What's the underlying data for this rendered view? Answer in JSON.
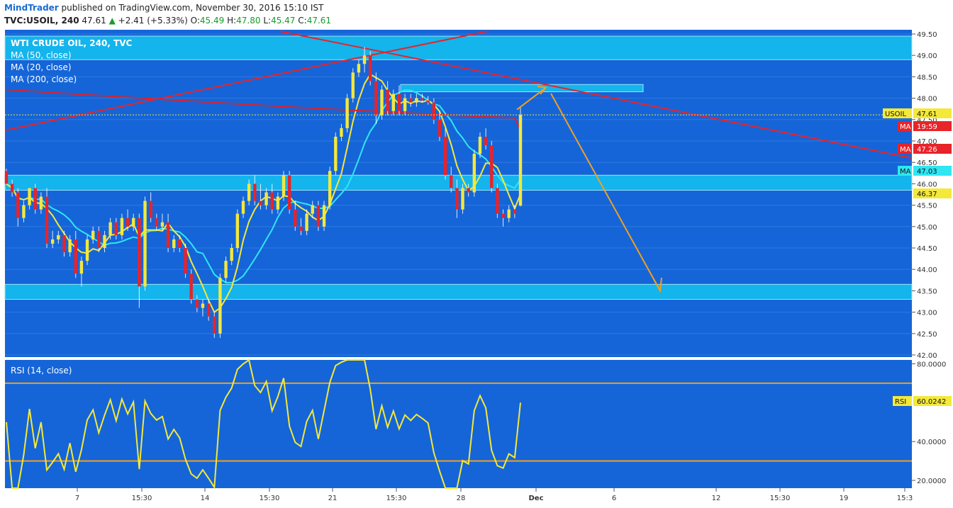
{
  "header": {
    "author": "MindTrader",
    "published_text": "published on TradingView.com, November 30, 2016 15:10 IST",
    "symbol": "TVC:USOIL, 240",
    "last": "47.61",
    "change_arrow": "▲",
    "change": "+2.41 (+5.33%)",
    "o_label": "O:",
    "o_value": "45.49",
    "h_label": "H:",
    "h_value": "47.80",
    "l_label": "L:",
    "l_value": "45.47",
    "c_label": "C:",
    "c_value": "47.61"
  },
  "legend": {
    "title": "WTI CRUDE OIL, 240, TVC",
    "ma50": "MA (50, close)",
    "ma20": "MA (20, close)",
    "ma200": "MA (200, close)"
  },
  "rsi_label": "RSI (14, close)",
  "price_axis": {
    "ticks": [
      "49.50",
      "49.00",
      "48.50",
      "48.00",
      "47.50",
      "47.00",
      "46.50",
      "46.00",
      "45.50",
      "45.00",
      "44.50",
      "44.00",
      "43.50",
      "43.00",
      "42.50",
      "42.00"
    ]
  },
  "rsi_axis": {
    "ticks": [
      "80.0000",
      "40.0000",
      "20.0000"
    ]
  },
  "time_axis": {
    "ticks": [
      "7",
      "15:30",
      "14",
      "15:30",
      "21",
      "15:30",
      "28",
      "Dec",
      "6",
      "12",
      "15:30",
      "19",
      "15:3"
    ]
  },
  "badges": [
    {
      "label": "USOIL",
      "value": "47.61",
      "color": "#f4e83a"
    },
    {
      "label": "MA",
      "value": "19:59",
      "color": "#e8232a"
    },
    {
      "label": "MA",
      "value": "47.26",
      "color": "#e8232a"
    },
    {
      "label": "MA",
      "value": "47.03",
      "color": "#f4e83a"
    },
    {
      "label": "",
      "value": "46.37",
      "color": "#f4e83a"
    },
    {
      "label": "RSI",
      "value": "60.0242",
      "color": "#f4e83a"
    }
  ],
  "colors": {
    "background": "#1565d8",
    "zone": "#14b4ec",
    "bull": "#f4e83a",
    "bear": "#e8232a",
    "ma50": "#2fe6f2",
    "ma20": "#f4e83a",
    "ma200": "#d9232f",
    "trendline": "#e8232a",
    "projection": "#f0a020",
    "rsi_line": "#f4e83a",
    "rsi_levels": "#f0a020"
  },
  "chart_data": {
    "type": "candlestick",
    "symbol": "TVC:USOIL",
    "timeframe": "240",
    "ylim": [
      41.9,
      49.6
    ],
    "support_resistance_zones": [
      [
        48.9,
        49.45
      ],
      [
        45.85,
        46.2
      ],
      [
        43.3,
        43.65
      ],
      [
        48.15,
        48.32
      ]
    ],
    "last_price": 47.61,
    "ma_values": {
      "ma200": 47.26,
      "ma50": 47.03,
      "ma20": 46.37
    },
    "candles_ohlc": [
      [
        46.3,
        46.35,
        46.0,
        46.0
      ],
      [
        46.0,
        46.1,
        45.7,
        45.8
      ],
      [
        45.8,
        45.9,
        45.0,
        45.2
      ],
      [
        45.2,
        45.6,
        45.1,
        45.5
      ],
      [
        45.5,
        45.9,
        45.4,
        45.9
      ],
      [
        45.9,
        46.0,
        45.3,
        45.4
      ],
      [
        45.4,
        45.8,
        45.3,
        45.7
      ],
      [
        45.7,
        45.9,
        44.5,
        44.6
      ],
      [
        44.6,
        44.9,
        44.5,
        44.7
      ],
      [
        44.7,
        44.9,
        44.6,
        44.8
      ],
      [
        44.8,
        44.9,
        44.3,
        44.4
      ],
      [
        44.4,
        44.8,
        44.3,
        44.7
      ],
      [
        44.7,
        44.9,
        43.8,
        43.9
      ],
      [
        43.9,
        44.3,
        43.6,
        44.2
      ],
      [
        44.2,
        44.8,
        44.1,
        44.7
      ],
      [
        44.7,
        45.0,
        44.6,
        44.9
      ],
      [
        44.9,
        45.0,
        44.4,
        44.5
      ],
      [
        44.5,
        44.9,
        44.4,
        44.8
      ],
      [
        44.8,
        45.2,
        44.7,
        45.1
      ],
      [
        45.1,
        45.2,
        44.7,
        44.8
      ],
      [
        44.8,
        45.3,
        44.7,
        45.2
      ],
      [
        45.2,
        45.4,
        44.9,
        45.0
      ],
      [
        45.0,
        45.3,
        44.9,
        45.2
      ],
      [
        45.2,
        45.3,
        43.1,
        43.6
      ],
      [
        43.6,
        45.7,
        43.5,
        45.6
      ],
      [
        45.6,
        45.8,
        45.1,
        45.2
      ],
      [
        45.2,
        45.3,
        44.9,
        45.0
      ],
      [
        45.0,
        45.3,
        44.9,
        45.1
      ],
      [
        45.1,
        45.3,
        44.4,
        44.5
      ],
      [
        44.5,
        44.8,
        44.4,
        44.7
      ],
      [
        44.7,
        44.8,
        44.4,
        44.5
      ],
      [
        44.5,
        44.6,
        43.8,
        43.9
      ],
      [
        43.9,
        44.0,
        43.2,
        43.3
      ],
      [
        43.3,
        43.4,
        43.0,
        43.1
      ],
      [
        43.1,
        43.3,
        42.9,
        43.2
      ],
      [
        43.2,
        43.3,
        42.8,
        42.9
      ],
      [
        42.9,
        43.0,
        42.4,
        42.5
      ],
      [
        42.5,
        43.9,
        42.4,
        43.8
      ],
      [
        43.8,
        44.3,
        43.7,
        44.2
      ],
      [
        44.2,
        44.6,
        44.1,
        44.5
      ],
      [
        44.5,
        45.4,
        44.4,
        45.3
      ],
      [
        45.3,
        45.7,
        45.2,
        45.6
      ],
      [
        45.6,
        46.1,
        45.5,
        46.0
      ],
      [
        46.0,
        46.2,
        45.5,
        45.6
      ],
      [
        45.6,
        46.0,
        45.4,
        45.5
      ],
      [
        45.5,
        45.9,
        45.4,
        45.8
      ],
      [
        45.8,
        46.0,
        45.3,
        45.4
      ],
      [
        45.4,
        45.8,
        45.3,
        45.7
      ],
      [
        45.7,
        46.3,
        45.6,
        46.2
      ],
      [
        46.2,
        46.3,
        45.3,
        45.4
      ],
      [
        45.4,
        45.6,
        44.9,
        45.0
      ],
      [
        45.0,
        45.2,
        44.8,
        44.9
      ],
      [
        44.9,
        45.4,
        44.8,
        45.3
      ],
      [
        45.3,
        45.6,
        45.2,
        45.5
      ],
      [
        45.5,
        45.6,
        44.9,
        45.0
      ],
      [
        45.0,
        45.6,
        44.9,
        45.5
      ],
      [
        45.5,
        46.4,
        45.4,
        46.3
      ],
      [
        46.3,
        47.2,
        46.2,
        47.1
      ],
      [
        47.1,
        47.4,
        47.0,
        47.3
      ],
      [
        47.3,
        48.1,
        47.2,
        48.0
      ],
      [
        48.0,
        48.7,
        47.9,
        48.6
      ],
      [
        48.6,
        48.9,
        48.5,
        48.8
      ],
      [
        48.8,
        49.2,
        48.6,
        49.0
      ],
      [
        49.0,
        49.1,
        48.3,
        48.4
      ],
      [
        48.4,
        48.6,
        47.4,
        47.6
      ],
      [
        47.6,
        48.3,
        47.5,
        48.2
      ],
      [
        48.2,
        48.4,
        47.6,
        47.7
      ],
      [
        47.7,
        48.2,
        47.6,
        48.1
      ],
      [
        48.1,
        48.3,
        47.6,
        47.7
      ],
      [
        47.7,
        48.1,
        47.6,
        48.0
      ],
      [
        48.0,
        48.1,
        47.8,
        47.9
      ],
      [
        47.9,
        48.1,
        47.8,
        48.0
      ],
      [
        48.0,
        48.1,
        47.9,
        47.95
      ],
      [
        47.95,
        48.05,
        47.85,
        47.9
      ],
      [
        47.9,
        48.0,
        47.4,
        47.5
      ],
      [
        47.5,
        47.7,
        47.0,
        47.1
      ],
      [
        47.1,
        47.3,
        46.1,
        46.2
      ],
      [
        46.2,
        46.4,
        45.8,
        45.9
      ],
      [
        45.9,
        46.1,
        45.2,
        45.4
      ],
      [
        45.4,
        46.0,
        45.3,
        45.9
      ],
      [
        45.9,
        46.0,
        45.7,
        45.8
      ],
      [
        45.8,
        46.8,
        45.7,
        46.7
      ],
      [
        46.7,
        47.2,
        46.6,
        47.1
      ],
      [
        47.1,
        47.3,
        46.8,
        46.9
      ],
      [
        46.9,
        47.0,
        45.8,
        45.9
      ],
      [
        45.9,
        46.0,
        45.2,
        45.3
      ],
      [
        45.3,
        45.4,
        45.0,
        45.2
      ],
      [
        45.2,
        45.5,
        45.1,
        45.4
      ],
      [
        45.4,
        45.5,
        45.2,
        45.3
      ],
      [
        45.49,
        47.8,
        45.47,
        47.61
      ]
    ],
    "rsi": {
      "name": "RSI (14, close)",
      "levels": [
        70,
        30
      ],
      "ylim": [
        16,
        82
      ],
      "last": 60.0242
    }
  }
}
